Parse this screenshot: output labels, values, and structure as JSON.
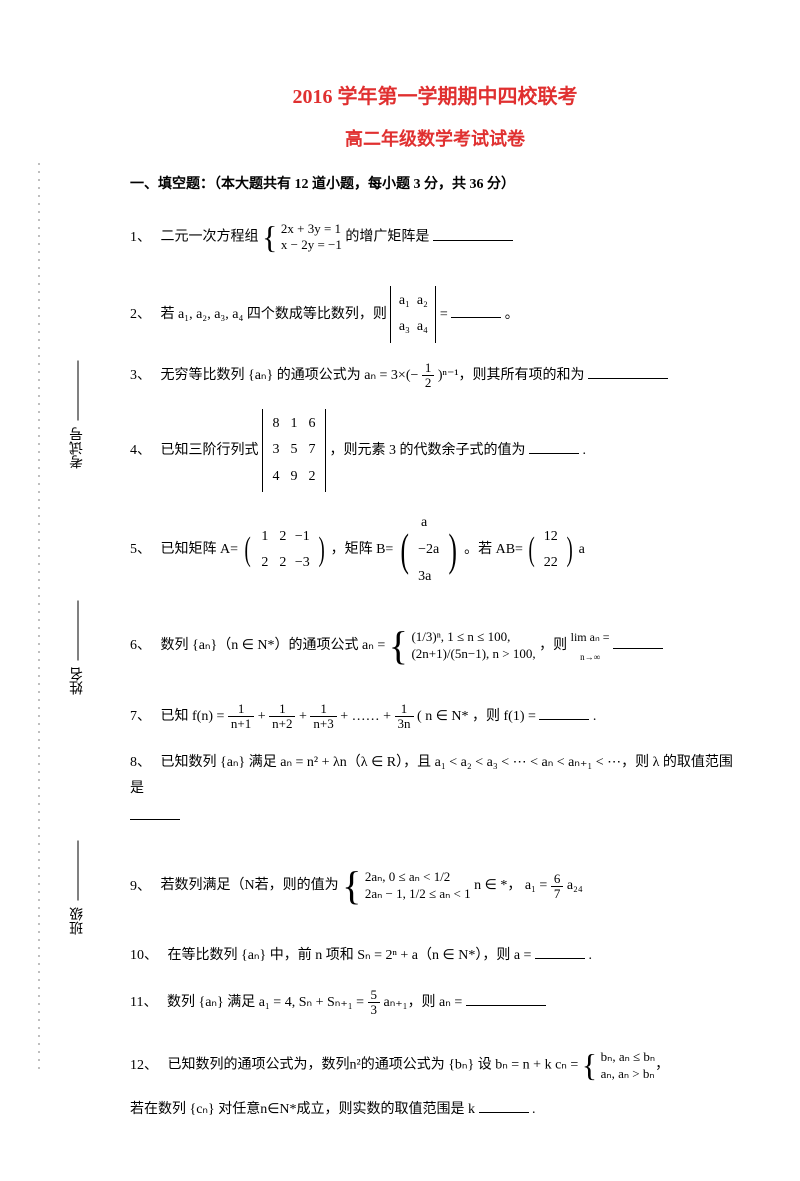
{
  "title_line1": "2016 学年第一学期期中四校联考",
  "title_line2": "高二年级数学考试试卷",
  "section1_header": "一、填空题：（本大题共有 12 道小题，每小题 3 分，共 36 分）",
  "q1": {
    "num": "1、",
    "pre": "二元一次方程组",
    "eq1": "2x + 3y = 1",
    "eq2": "x − 2y = −1",
    "post": "的增广矩阵是"
  },
  "q2": {
    "num": "2、",
    "pre": "若 a₁, a₂, a₃, a₄ 四个数成等比数列，则",
    "det_tl": "a₁",
    "det_tr": "a₂",
    "det_bl": "a₃",
    "det_br": "a₄",
    "post": "=",
    "end": "。"
  },
  "q3": {
    "num": "3、",
    "pre": "无穷等比数列 {aₙ} 的通项公式为 aₙ = 3×(−",
    "frac_n": "1",
    "frac_d": "2",
    "exp": ")ⁿ⁻¹，则其所有项的和为"
  },
  "q4": {
    "num": "4、",
    "pre": "已知三阶行列式",
    "row1": [
      "8",
      "1",
      "6"
    ],
    "row2": [
      "3",
      "5",
      "7"
    ],
    "row3": [
      "4",
      "9",
      "2"
    ],
    "post": "，则元素 3 的代数余子式的值为",
    "end": "."
  },
  "q5": {
    "num": "5、",
    "pre": "已知矩阵 A=",
    "A_row1": [
      "1",
      "2",
      "−1"
    ],
    "A_row2": [
      "2",
      "2",
      "−3"
    ],
    "mid": "，矩阵 B=",
    "B_col": [
      "a",
      "−2a",
      "3a"
    ],
    "mid2": "。若 AB=",
    "C_col": [
      "12",
      "22"
    ],
    "post": "    a"
  },
  "q6": {
    "num": "6、",
    "pre": "数列 {aₙ}（n ∈ N*）的通项公式 aₙ =",
    "case1": "(1/3)ⁿ, 1 ≤ n ≤ 100,",
    "case2": "(2n+1)/(5n−1), n > 100,",
    "post": "，则",
    "lim": "lim aₙ =",
    "sub": "n→∞"
  },
  "q7": {
    "num": "7、",
    "pre": "已知 f(n) =",
    "f1n": "1",
    "f1d": "n+1",
    "f2n": "1",
    "f2d": "n+2",
    "f3n": "1",
    "f3d": "n+3",
    "dots": "+ …… +",
    "f4n": "1",
    "f4d": "3n",
    "mid": "( n ∈ N* ，则 f(1) =",
    "end": "."
  },
  "q8": {
    "num": "8、",
    "text": "已知数列 {aₙ} 满足 aₙ = n² + λn（λ ∈ R），且 a₁ < a₂ < a₃ < ⋯ < aₙ < aₙ₊₁ < ⋯，则 λ 的取值范围是"
  },
  "q9": {
    "num": "9、",
    "pre": "若数列满足（N若，则的值为",
    "case1": "2aₙ, 0 ≤ aₙ < 1/2",
    "case2": "2aₙ − 1, 1/2 ≤ aₙ < 1",
    "mid": "  n ∈ *，  a₁ = ",
    "frac_n": "6",
    "frac_d": "7",
    "post": "    a₂₄"
  },
  "q10": {
    "num": "10、",
    "text": "在等比数列 {aₙ} 中，前 n 项和 Sₙ = 2ⁿ + a（n ∈ N*），则 a =",
    "end": "."
  },
  "q11": {
    "num": "11、",
    "text": "数列 {aₙ} 满足 a₁ = 4, Sₙ + Sₙ₊₁ = ",
    "frac_n": "5",
    "frac_d": "3",
    "post": " aₙ₊₁，则 aₙ ="
  },
  "q12": {
    "num": "12、",
    "line1": "已知数列的通项公式为，数列n²的通项公式为 {bₙ} 设      bₙ = n + k    cₙ =",
    "case1": "bₙ,   aₙ ≤ bₙ",
    "case2": "aₙ,   aₙ > bₙ",
    "line2": "若在数列 {cₙ} 对任意n∈N*成立，则实数的取值范围是    k",
    "end": "."
  },
  "labels": {
    "banji": "班级",
    "xingming": "姓名",
    "kaoshihao": "考试号"
  },
  "colors": {
    "title": "#e03030",
    "text": "#000000",
    "bg": "#ffffff"
  }
}
